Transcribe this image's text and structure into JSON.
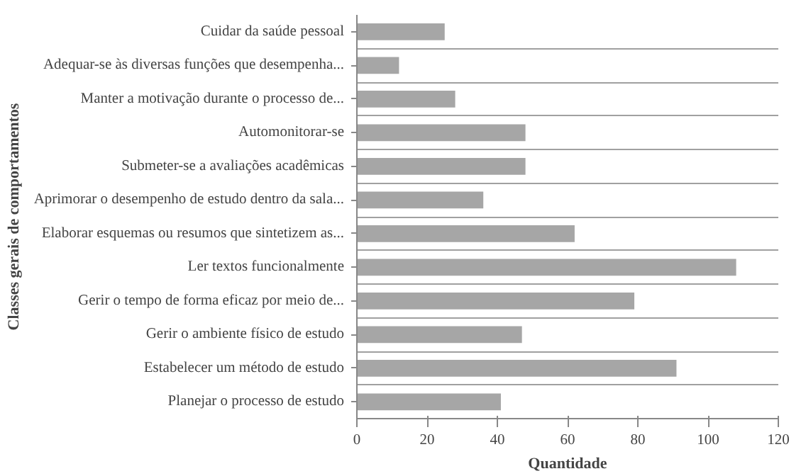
{
  "chart_data": {
    "type": "bar",
    "orientation": "horizontal",
    "xlabel": "Quantidade",
    "ylabel": "Classes gerais de comportamentos",
    "categories": [
      "Cuidar da saúde pessoal",
      "Adequar-se às diversas funções que desempenha...",
      "Manter a motivação durante o processo de...",
      "Automonitorar-se",
      "Submeter-se a avaliações acadêmicas",
      "Aprimorar o desempenho de estudo dentro da sala...",
      "Elaborar esquemas ou resumos que sintetizem as...",
      "Ler textos funcionalmente",
      "Gerir o tempo de forma eficaz por meio de...",
      "Gerir o ambiente físico de estudo",
      "Estabelecer um método de estudo",
      "Planejar o processo de estudo"
    ],
    "values": [
      25,
      12,
      28,
      48,
      48,
      36,
      62,
      108,
      79,
      47,
      91,
      41
    ],
    "color": "#a6a6a6",
    "xlim": [
      0,
      120
    ],
    "xticks": [
      0,
      20,
      40,
      60,
      80,
      100,
      120
    ],
    "grid": "y"
  }
}
